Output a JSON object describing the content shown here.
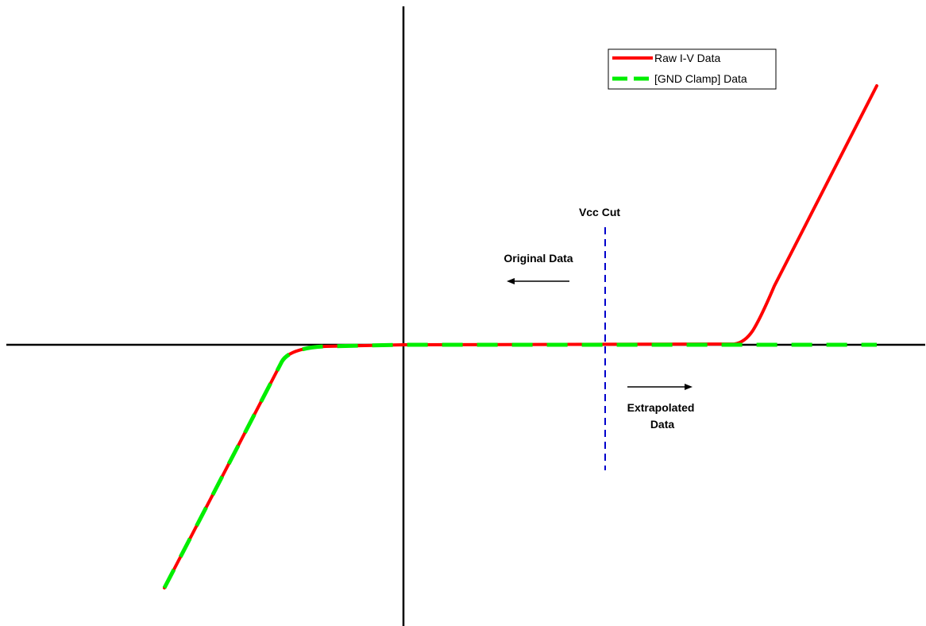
{
  "diagram": {
    "annotations": {
      "vcc_cut": "Vcc Cut",
      "original_data": "Original Data",
      "extrapolated_data_line1": "Extrapolated",
      "extrapolated_data_line2": "Data"
    },
    "legend": {
      "placement": "top-right",
      "items": [
        {
          "label": "Raw I-V Data",
          "color": "#ff0000",
          "style": "solid"
        },
        {
          "label": "[GND Clamp] Data",
          "color": "#00ee00",
          "style": "dashed"
        }
      ]
    },
    "colors": {
      "axes": "#000000",
      "vcc_cut_line": "#0000cc",
      "raw_curve": "#ff0000",
      "clamp_curve": "#00ee00"
    }
  }
}
